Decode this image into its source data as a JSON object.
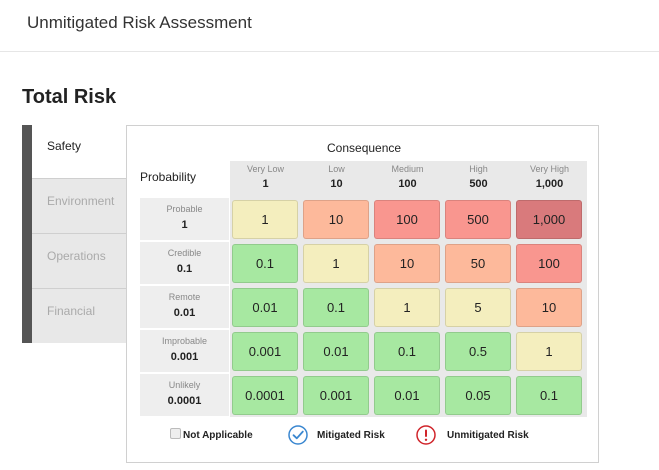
{
  "header": {
    "title": "Unmitigated Risk Assessment"
  },
  "section": {
    "title": "Total Risk"
  },
  "tabs": [
    {
      "label": "Safety",
      "active": true
    },
    {
      "label": "Environment",
      "active": false
    },
    {
      "label": "Operations",
      "active": false
    },
    {
      "label": "Financial",
      "active": false
    }
  ],
  "matrix": {
    "consequence_label": "Consequence",
    "probability_label": "Probability",
    "columns": [
      {
        "label": "Very Low",
        "value": "1"
      },
      {
        "label": "Low",
        "value": "10"
      },
      {
        "label": "Medium",
        "value": "100"
      },
      {
        "label": "High",
        "value": "500"
      },
      {
        "label": "Very High",
        "value": "1,000"
      }
    ],
    "rows": [
      {
        "label": "Probable",
        "value": "1",
        "cells": [
          "1",
          "10",
          "100",
          "500",
          "1,000"
        ],
        "colors": [
          "#f4eebe",
          "#fdb99b",
          "#f9968f",
          "#f9968f",
          "#d97a7c"
        ]
      },
      {
        "label": "Credible",
        "value": "0.1",
        "cells": [
          "0.1",
          "1",
          "10",
          "50",
          "100"
        ],
        "colors": [
          "#a7e8a1",
          "#f4eebe",
          "#fdb99b",
          "#fdb99b",
          "#f9968f"
        ]
      },
      {
        "label": "Remote",
        "value": "0.01",
        "cells": [
          "0.01",
          "0.1",
          "1",
          "5",
          "10"
        ],
        "colors": [
          "#a7e8a1",
          "#a7e8a1",
          "#f4eebe",
          "#f4eebe",
          "#fdb99b"
        ]
      },
      {
        "label": "Improbable",
        "value": "0.001",
        "cells": [
          "0.001",
          "0.01",
          "0.1",
          "0.5",
          "1"
        ],
        "colors": [
          "#a7e8a1",
          "#a7e8a1",
          "#a7e8a1",
          "#a7e8a1",
          "#f4eebe"
        ]
      },
      {
        "label": "Unlikely",
        "value": "0.0001",
        "cells": [
          "0.0001",
          "0.001",
          "0.01",
          "0.05",
          "0.1"
        ],
        "colors": [
          "#a7e8a1",
          "#a7e8a1",
          "#a7e8a1",
          "#a7e8a1",
          "#a7e8a1"
        ]
      }
    ]
  },
  "legend": {
    "not_applicable": "Not Applicable",
    "mitigated": "Mitigated Risk",
    "unmitigated": "Unmitigated Risk",
    "mitigated_color": "#3a87d0",
    "unmitigated_color": "#d0242a",
    "mitigated_icon": "check-circle-icon",
    "unmitigated_icon": "exclamation-circle-icon"
  }
}
